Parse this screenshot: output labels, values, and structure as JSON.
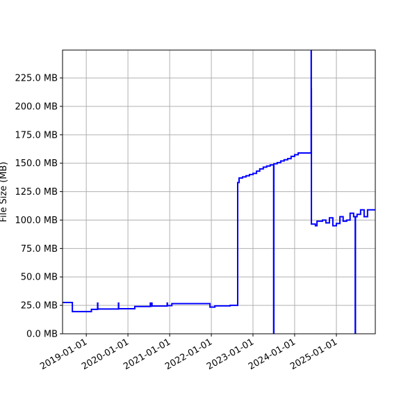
{
  "chart_data": {
    "type": "line",
    "title": "",
    "xlabel": "",
    "ylabel": "File Size (MB)",
    "xlim": [
      "2018-06-07",
      "2025-12-08"
    ],
    "ylim": [
      0,
      249.5
    ],
    "grid": true,
    "line_color": "#0000ff",
    "step": "post",
    "y_ticks": [
      0,
      25,
      50,
      75,
      100,
      125,
      150,
      175,
      200,
      225
    ],
    "y_tick_labels": [
      "0.0 MB",
      "25.0 MB",
      "50.0 MB",
      "75.0 MB",
      "100.0 MB",
      "125.0 MB",
      "150.0 MB",
      "175.0 MB",
      "200.0 MB",
      "225.0 MB"
    ],
    "x_ticks": [
      "2019-01-01",
      "2020-01-01",
      "2021-01-01",
      "2022-01-01",
      "2023-01-01",
      "2024-01-01",
      "2025-01-01"
    ],
    "series": [
      {
        "x": [
          "2018-06-07",
          "2018-09-01",
          "2019-02-15",
          "2019-04-10",
          "2019-04-12",
          "2019-10-10",
          "2019-10-12",
          "2020-03-01",
          "2020-07-15",
          "2020-07-17",
          "2020-07-28",
          "2020-07-30",
          "2020-12-10",
          "2020-12-12",
          "2021-01-20",
          "2021-12-20",
          "2022-02-01",
          "2022-06-15",
          "2022-08-20",
          "2022-09-01",
          "2022-10-01",
          "2022-11-01",
          "2022-12-01",
          "2023-01-01",
          "2023-02-01",
          "2023-03-01",
          "2023-04-01",
          "2023-05-01",
          "2023-06-01",
          "2023-07-01",
          "2023-07-03",
          "2023-08-01",
          "2023-09-01",
          "2023-10-01",
          "2023-11-01",
          "2023-12-01",
          "2024-01-01",
          "2024-02-01",
          "2024-05-25",
          "2024-05-26",
          "2024-05-27",
          "2024-07-01",
          "2024-07-15",
          "2024-09-01",
          "2024-10-01",
          "2024-11-01",
          "2024-12-01",
          "2025-01-01",
          "2025-02-01",
          "2025-03-01",
          "2025-04-01",
          "2025-05-01",
          "2025-06-01",
          "2025-06-15",
          "2025-06-17",
          "2025-07-01",
          "2025-08-01",
          "2025-09-01",
          "2025-10-01",
          "2025-12-08"
        ],
        "values": [
          27.5,
          19.5,
          21.5,
          27,
          21.8,
          27,
          22,
          24,
          27,
          24.2,
          27,
          24.4,
          27,
          24.8,
          26.5,
          23.5,
          24.5,
          25,
          133,
          137,
          138,
          139,
          140,
          141,
          143,
          145,
          146.5,
          147.5,
          148.5,
          0,
          149.5,
          150.5,
          152,
          153,
          154,
          156,
          157.5,
          159,
          260,
          215,
          96.5,
          95,
          99,
          100,
          97.5,
          102,
          95,
          97,
          103,
          99,
          100,
          106,
          103,
          0,
          103,
          105,
          109,
          103,
          109,
          109
        ]
      }
    ]
  }
}
